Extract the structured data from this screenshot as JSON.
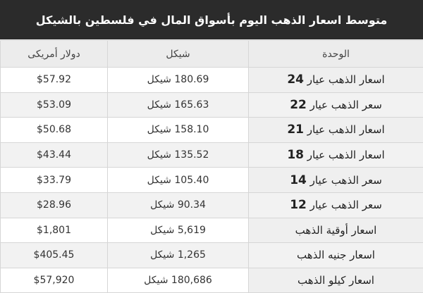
{
  "title": "متوسط اسعار الذهب اليوم بأسواق المال في فلسطين بالشيكل",
  "headers": {
    "unit": "الوحدة",
    "shekel": "شيكل",
    "usd": "دولار أمريكى"
  },
  "currency_suffix": "شيكل",
  "rows": [
    {
      "unit": "اسعار الذهب عيار",
      "karat": "24",
      "shekel": "180.69 شيكل",
      "usd": "$57.92"
    },
    {
      "unit": "سعر الذهب عيار",
      "karat": "22",
      "shekel": "165.63 شيكل",
      "usd": "$53.09"
    },
    {
      "unit": "اسعار الذهب عيار",
      "karat": "21",
      "shekel": "158.10 شيكل",
      "usd": "$50.68"
    },
    {
      "unit": "اسعار الذهب عيار",
      "karat": "18",
      "shekel": "135.52 شيكل",
      "usd": "$43.44"
    },
    {
      "unit": "سعر الذهب عيار",
      "karat": "14",
      "shekel": "105.40 شيكل",
      "usd": "$33.79"
    },
    {
      "unit": "سعر الذهب عيار",
      "karat": "12",
      "shekel": "90.34 شيكل",
      "usd": "$28.96"
    },
    {
      "unit": "اسعار أوقية الذهب",
      "karat": null,
      "shekel": "5,619 شيكل",
      "usd": "$1,801"
    },
    {
      "unit": "اسعار جنيه الذهب",
      "karat": null,
      "shekel": "1,265 شيكل",
      "usd": "$405.45"
    },
    {
      "unit": "اسعار كيلو الذهب",
      "karat": null,
      "shekel": "180,686 شيكل",
      "usd": "$57,920"
    }
  ]
}
